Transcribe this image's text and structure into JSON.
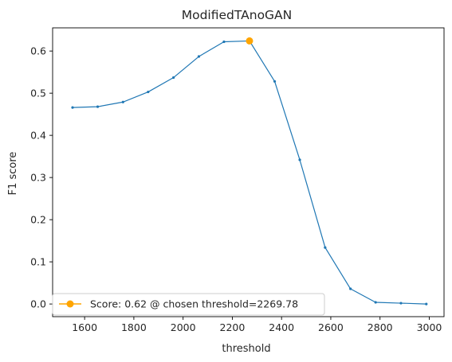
{
  "chart_data": {
    "type": "line",
    "title": "ModifiedTAnoGAN",
    "xlabel": "threshold",
    "ylabel": "F1 score",
    "xlim": [
      1470,
      3060
    ],
    "ylim": [
      -0.03,
      0.655
    ],
    "xticks": [
      1600,
      1800,
      2000,
      2200,
      2400,
      2600,
      2800,
      3000
    ],
    "yticks": [
      0.0,
      0.1,
      0.2,
      0.3,
      0.4,
      0.5,
      0.6
    ],
    "grid": false,
    "series": [
      {
        "color": "#1f77b4",
        "x": [
          1551,
          1653,
          1756,
          1858,
          1961,
          2064,
          2166,
          2269.78,
          2372,
          2474,
          2577,
          2680,
          2782,
          2885,
          2988
        ],
        "y": [
          0.466,
          0.468,
          0.479,
          0.503,
          0.537,
          0.587,
          0.622,
          0.624,
          0.528,
          0.342,
          0.134,
          0.036,
          0.004,
          0.002,
          0.0
        ]
      }
    ],
    "highlight": {
      "name": "Score: 0.62 @ chosen threshold=2269.78",
      "x": 2269.78,
      "y": 0.624,
      "color": "#ffa500"
    },
    "legend_placement": "lower-left"
  }
}
